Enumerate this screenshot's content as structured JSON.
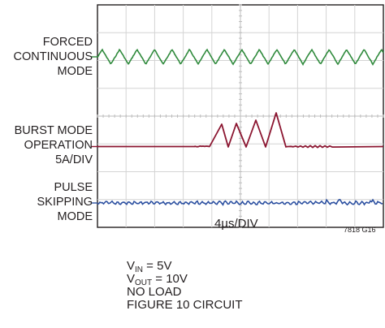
{
  "chart_data": {
    "type": "line",
    "xlabel": "4µs/DIV",
    "figure_id": "7818 G16",
    "grid": true,
    "divisions": {
      "x": 10,
      "y": 8
    },
    "series": [
      {
        "label_lines": [
          "FORCED",
          "CONTINUOUS",
          "MODE"
        ],
        "color": "#2f8a3c",
        "waveform": "continuous triangle ripple, ~16 cycles across the screen"
      },
      {
        "label_lines": [
          "BURST MODE",
          "OPERATION",
          "5A/DIV"
        ],
        "color": "#8b1530",
        "waveform": "flat near zero with a burst of 4 triangular current pulses near center; pulse peaks rise from about 1.3 to 2.0 divisions"
      },
      {
        "label_lines": [
          "PULSE",
          "SKIPPING",
          "MODE"
        ],
        "color": "#2b4fa0",
        "waveform": "low-amplitude noisy ripple near baseline"
      }
    ],
    "conditions": [
      {
        "base": "V",
        "sub": "IN",
        "rest": " = 5V"
      },
      {
        "base": "V",
        "sub": "OUT",
        "rest": " = 10V"
      },
      {
        "base": "NO LOAD",
        "sub": "",
        "rest": ""
      },
      {
        "base": "FIGURE 10 CIRCUIT",
        "sub": "",
        "rest": ""
      }
    ]
  }
}
